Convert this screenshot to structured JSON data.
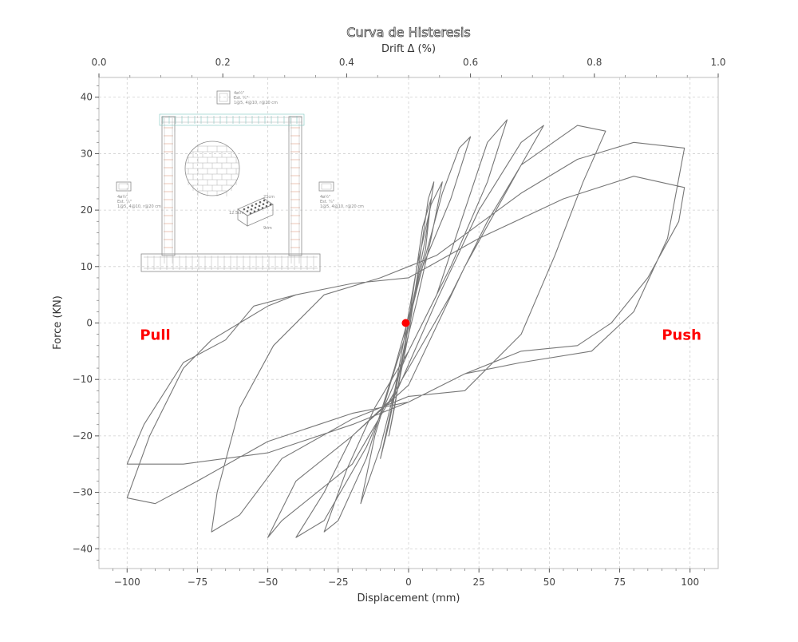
{
  "chart_data": {
    "type": "line",
    "title": "Curva de Histeresis",
    "xlabel": "Displacement (mm)",
    "ylabel": "Force (KN)",
    "x2label": "Drift Δ (%)",
    "xlim": [
      -110,
      110
    ],
    "ylim": [
      -43.5,
      43.5
    ],
    "x2lim": [
      0.0,
      1.0
    ],
    "x_ticks": [
      -100,
      -75,
      -50,
      -25,
      0,
      25,
      50,
      75,
      100
    ],
    "x_tick_labels": [
      "−100",
      "−75",
      "−50",
      "−25",
      "0",
      "25",
      "50",
      "75",
      "100"
    ],
    "y_ticks": [
      -40,
      -30,
      -20,
      -10,
      0,
      10,
      20,
      30,
      40
    ],
    "y_tick_labels": [
      "−40",
      "−30",
      "−20",
      "−10",
      "0",
      "10",
      "20",
      "30",
      "40"
    ],
    "x2_ticks": [
      0.0,
      0.2,
      0.4,
      0.6,
      0.8,
      1.0
    ],
    "x2_tick_labels": [
      "0.0",
      "0.2",
      "0.4",
      "0.6",
      "0.8",
      "1.0"
    ],
    "grid": true,
    "line_color": "#777777",
    "origin_marker": {
      "x": -1,
      "y": 0,
      "color": "#ff0000"
    },
    "annotations": [
      {
        "text": "Pull",
        "x": -90,
        "y": -3,
        "color": "#ff0000"
      },
      {
        "text": "Push",
        "x": 97,
        "y": -3,
        "color": "#ff0000"
      }
    ],
    "series": [
      {
        "points": [
          [
            0,
            0
          ],
          [
            5,
            17
          ],
          [
            8,
            22
          ],
          [
            6,
            13
          ],
          [
            2,
            5
          ],
          [
            -2,
            -6
          ],
          [
            -5,
            -15
          ],
          [
            -7,
            -20
          ],
          [
            -4,
            -12
          ],
          [
            0,
            -2
          ],
          [
            3,
            8
          ],
          [
            7,
            22
          ],
          [
            9,
            25
          ],
          [
            6,
            15
          ],
          [
            2,
            5
          ],
          [
            -3,
            -8
          ],
          [
            -7,
            -18
          ],
          [
            -10,
            -24
          ],
          [
            -6,
            -15
          ],
          [
            -2,
            -4
          ],
          [
            3,
            10
          ],
          [
            8,
            21
          ],
          [
            12,
            25
          ],
          [
            8,
            15
          ],
          [
            3,
            4
          ],
          [
            -4,
            -10
          ],
          [
            -10,
            -22
          ],
          [
            -17,
            -32
          ],
          [
            -12,
            -20
          ],
          [
            -6,
            -10
          ],
          [
            -1,
            -2
          ],
          [
            5,
            10
          ],
          [
            12,
            23
          ],
          [
            18,
            31
          ],
          [
            22,
            33
          ],
          [
            15,
            22
          ],
          [
            5,
            10
          ],
          [
            -5,
            -8
          ],
          [
            -15,
            -24
          ],
          [
            -25,
            -35
          ],
          [
            -30,
            -37
          ],
          [
            -22,
            -26
          ],
          [
            -12,
            -15
          ],
          [
            0,
            -5
          ],
          [
            10,
            5
          ],
          [
            20,
            20
          ],
          [
            28,
            32
          ],
          [
            35,
            36
          ],
          [
            28,
            25
          ],
          [
            15,
            10
          ],
          [
            0,
            -5
          ],
          [
            -15,
            -22
          ],
          [
            -30,
            -35
          ],
          [
            -40,
            -38
          ],
          [
            -30,
            -30
          ],
          [
            -20,
            -20
          ],
          [
            -5,
            -13
          ],
          [
            10,
            4
          ],
          [
            25,
            20
          ],
          [
            40,
            32
          ],
          [
            48,
            35
          ],
          [
            40,
            28
          ],
          [
            28,
            18
          ],
          [
            15,
            5
          ],
          [
            0,
            -8
          ],
          [
            -20,
            -25
          ],
          [
            -45,
            -35
          ],
          [
            -50,
            -38
          ],
          [
            -40,
            -28
          ],
          [
            -20,
            -20
          ],
          [
            0,
            -11
          ],
          [
            20,
            10
          ],
          [
            40,
            28
          ],
          [
            60,
            35
          ],
          [
            70,
            34
          ],
          [
            62,
            25
          ],
          [
            52,
            12
          ],
          [
            40,
            -2
          ],
          [
            20,
            -12
          ],
          [
            0,
            -13
          ],
          [
            -20,
            -17
          ],
          [
            -45,
            -24
          ],
          [
            -60,
            -34
          ],
          [
            -70,
            -37
          ],
          [
            -68,
            -30
          ],
          [
            -60,
            -15
          ],
          [
            -48,
            -4
          ],
          [
            -30,
            5
          ],
          [
            -10,
            8
          ],
          [
            10,
            12
          ],
          [
            40,
            23
          ],
          [
            60,
            29
          ],
          [
            80,
            32
          ],
          [
            98,
            31
          ],
          [
            92,
            15
          ],
          [
            80,
            2
          ],
          [
            65,
            -5
          ],
          [
            40,
            -7
          ],
          [
            20,
            -9
          ],
          [
            0,
            -14
          ],
          [
            -20,
            -18
          ],
          [
            -50,
            -23
          ],
          [
            -80,
            -25
          ],
          [
            -100,
            -25
          ],
          [
            -94,
            -18
          ],
          [
            -80,
            -7
          ],
          [
            -65,
            -3
          ],
          [
            -55,
            3
          ],
          [
            -40,
            5
          ],
          [
            -20,
            7
          ],
          [
            0,
            8
          ],
          [
            25,
            15
          ],
          [
            55,
            22
          ],
          [
            80,
            26
          ],
          [
            98,
            24
          ],
          [
            96,
            18
          ],
          [
            85,
            8
          ],
          [
            72,
            0
          ],
          [
            60,
            -4
          ],
          [
            40,
            -5
          ],
          [
            20,
            -9
          ],
          [
            0,
            -14
          ],
          [
            -20,
            -16
          ],
          [
            -50,
            -21
          ],
          [
            -75,
            -28
          ],
          [
            -90,
            -32
          ],
          [
            -100,
            -31
          ],
          [
            -92,
            -20
          ],
          [
            -80,
            -8
          ],
          [
            -70,
            -3
          ],
          [
            -60,
            0
          ],
          [
            -50,
            3
          ],
          [
            -40,
            5
          ],
          [
            -20,
            7
          ],
          [
            0,
            8
          ]
        ]
      }
    ]
  },
  "inset": {
    "top_label_lines": [
      "4ø½\"",
      "Est. ¼\"",
      "1@5, 4@10, r@20 cm"
    ],
    "left_label_lines": [
      "4ø½\"",
      "Est. ¼\"",
      "1@5, 4@10, r@20 cm"
    ],
    "right_label_lines": [
      "4ø½\"",
      "Est. ¼\"",
      "1@5, 4@10, r@20 cm"
    ],
    "brick_labels": [
      "23cm",
      "12.5cm",
      "9cm"
    ]
  }
}
